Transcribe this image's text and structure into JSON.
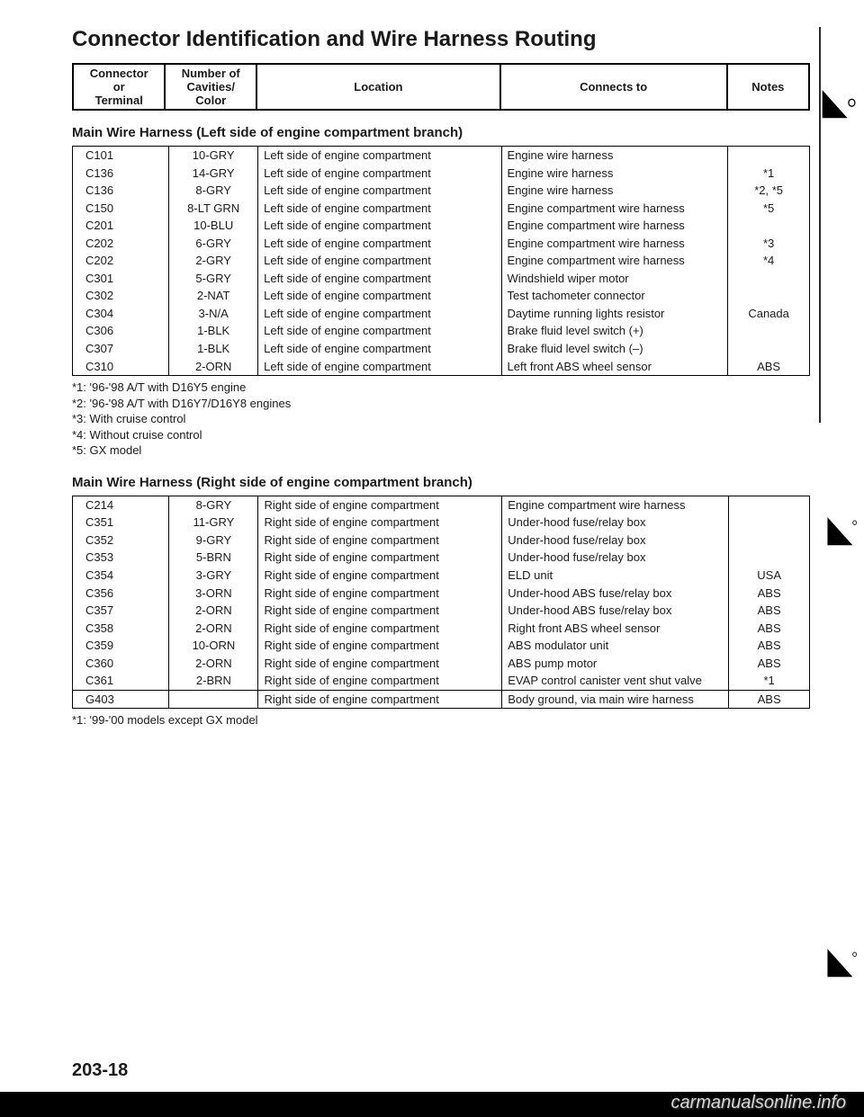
{
  "title": "Connector Identification and Wire Harness Routing",
  "header": {
    "col1": "Connector\nor\nTerminal",
    "col2": "Number of\nCavities/\nColor",
    "col3": "Location",
    "col4": "Connects to",
    "col5": "Notes"
  },
  "section1": {
    "heading": "Main Wire Harness (Left side of engine compartment branch)",
    "rows": [
      {
        "c": "C101",
        "cav": "10-GRY",
        "loc": "Left side of engine compartment",
        "to": "Engine wire harness",
        "n": ""
      },
      {
        "c": "C136",
        "cav": "14-GRY",
        "loc": "Left side of engine compartment",
        "to": "Engine wire harness",
        "n": "*1"
      },
      {
        "c": "C136",
        "cav": "8-GRY",
        "loc": "Left side of engine compartment",
        "to": "Engine wire harness",
        "n": "*2, *5"
      },
      {
        "c": "C150",
        "cav": "8-LT GRN",
        "loc": "Left side of engine compartment",
        "to": "Engine compartment wire harness",
        "n": "*5"
      },
      {
        "c": "C201",
        "cav": "10-BLU",
        "loc": "Left side of engine compartment",
        "to": "Engine compartment wire harness",
        "n": ""
      },
      {
        "c": "C202",
        "cav": "6-GRY",
        "loc": "Left side of engine compartment",
        "to": "Engine compartment wire harness",
        "n": "*3"
      },
      {
        "c": "C202",
        "cav": "2-GRY",
        "loc": "Left side of engine compartment",
        "to": "Engine compartment wire harness",
        "n": "*4"
      },
      {
        "c": "C301",
        "cav": "5-GRY",
        "loc": "Left side of engine compartment",
        "to": "Windshield wiper motor",
        "n": ""
      },
      {
        "c": "C302",
        "cav": "2-NAT",
        "loc": "Left side of engine compartment",
        "to": "Test tachometer connector",
        "n": ""
      },
      {
        "c": "C304",
        "cav": "3-N/A",
        "loc": "Left side of engine compartment",
        "to": "Daytime running lights resistor",
        "n": "Canada"
      },
      {
        "c": "C306",
        "cav": "1-BLK",
        "loc": "Left side of engine compartment",
        "to": "Brake fluid level switch (+)",
        "n": ""
      },
      {
        "c": "C307",
        "cav": "1-BLK",
        "loc": "Left side of engine compartment",
        "to": "Brake fluid level switch (–)",
        "n": ""
      },
      {
        "c": "C310",
        "cav": "2-ORN",
        "loc": "Left side of engine compartment",
        "to": "Left front ABS wheel sensor",
        "n": "ABS"
      }
    ],
    "footnotes": [
      "*1: '96-'98 A/T with D16Y5 engine",
      "*2: '96-'98 A/T with D16Y7/D16Y8 engines",
      "*3: With cruise control",
      "*4: Without cruise control",
      "*5: GX model"
    ]
  },
  "section2": {
    "heading": "Main Wire Harness (Right side of engine compartment branch)",
    "rows": [
      {
        "c": "C214",
        "cav": "8-GRY",
        "loc": "Right side of engine compartment",
        "to": "Engine compartment wire harness",
        "n": ""
      },
      {
        "c": "C351",
        "cav": "11-GRY",
        "loc": "Right side of engine compartment",
        "to": "Under-hood fuse/relay box",
        "n": ""
      },
      {
        "c": "C352",
        "cav": "9-GRY",
        "loc": "Right side of engine compartment",
        "to": "Under-hood fuse/relay box",
        "n": ""
      },
      {
        "c": "C353",
        "cav": "5-BRN",
        "loc": "Right side of engine compartment",
        "to": "Under-hood fuse/relay box",
        "n": ""
      },
      {
        "c": "C354",
        "cav": "3-GRY",
        "loc": "Right side of engine compartment",
        "to": "ELD unit",
        "n": "USA"
      },
      {
        "c": "C356",
        "cav": "3-ORN",
        "loc": "Right side of engine compartment",
        "to": "Under-hood ABS fuse/relay box",
        "n": "ABS"
      },
      {
        "c": "C357",
        "cav": "2-ORN",
        "loc": "Right side of engine compartment",
        "to": "Under-hood ABS fuse/relay box",
        "n": "ABS"
      },
      {
        "c": "C358",
        "cav": "2-ORN",
        "loc": "Right side of engine compartment",
        "to": "Right front ABS wheel sensor",
        "n": "ABS"
      },
      {
        "c": "C359",
        "cav": "10-ORN",
        "loc": "Right side of engine compartment",
        "to": "ABS modulator unit",
        "n": "ABS"
      },
      {
        "c": "C360",
        "cav": "2-ORN",
        "loc": "Right side of engine compartment",
        "to": "ABS pump motor",
        "n": "ABS"
      },
      {
        "c": "C361",
        "cav": "2-BRN",
        "loc": "Right side of engine compartment",
        "to": "EVAP control canister vent shut valve",
        "n": "*1"
      }
    ],
    "rows2": [
      {
        "c": "G403",
        "cav": "",
        "loc": "Right side of engine compartment",
        "to": "Body ground, via main wire harness",
        "n": "ABS"
      }
    ],
    "footnotes": [
      "*1: '99-'00 models except GX model"
    ]
  },
  "pageNumber": "203-18",
  "watermark": "carmanualsonline.info"
}
